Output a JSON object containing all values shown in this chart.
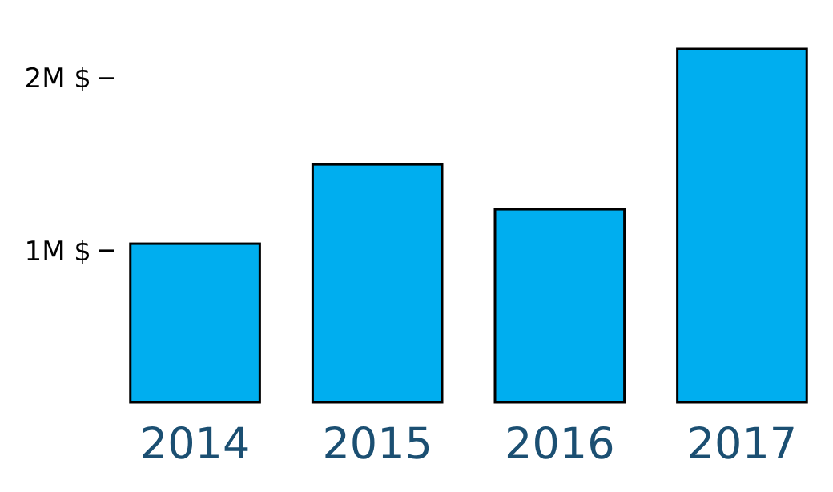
{
  "chart_data": {
    "type": "bar",
    "categories": [
      "2014",
      "2015",
      "2016",
      "2017"
    ],
    "values": [
      1.04,
      1.5,
      1.24,
      2.17
    ],
    "color": "#00aeef",
    "ylim": [
      0.12,
      2.17
    ],
    "yticks": [
      {
        "value": 1,
        "label": "1M $"
      },
      {
        "value": 2,
        "label": "2M $"
      }
    ],
    "grid": false
  }
}
